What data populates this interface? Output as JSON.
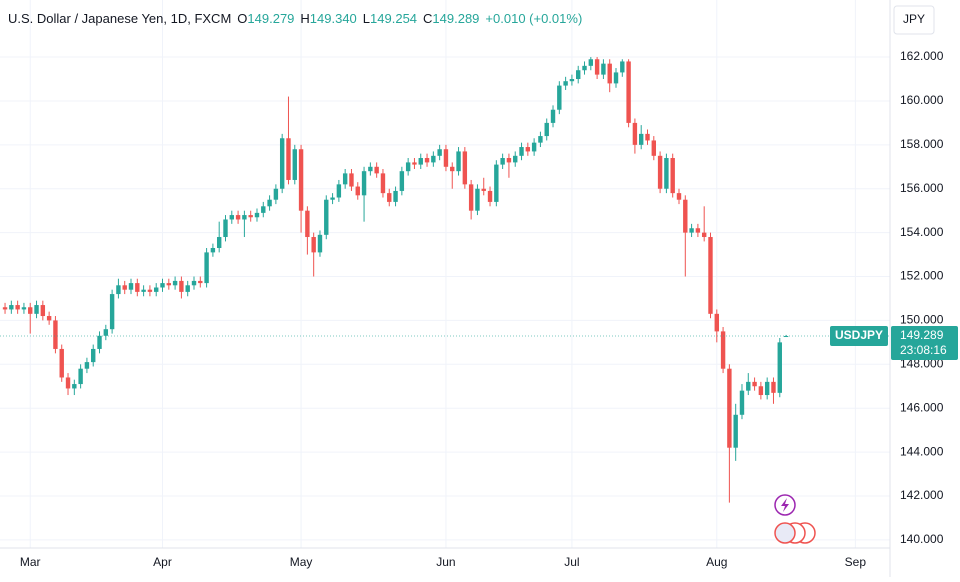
{
  "chart_data": {
    "type": "candlestick",
    "title": "U.S. Dollar / Japanese Yen, 1D, FXCM",
    "legend_items": [
      {
        "key": "O",
        "value": "149.279"
      },
      {
        "key": "H",
        "value": "149.340"
      },
      {
        "key": "L",
        "value": "149.254"
      },
      {
        "key": "C",
        "value": "149.289"
      }
    ],
    "change": "+0.010 (+0.01%)",
    "currency": "JPY",
    "symbol": "USDJPY",
    "last_price": "149.289",
    "countdown": "23:08:16",
    "up_color": "#26a69a",
    "down_color": "#ef5350",
    "grid": true,
    "xlim": [
      -0.8,
      140.5
    ],
    "xticks": [
      {
        "value": 4,
        "label": "Mar"
      },
      {
        "value": 25,
        "label": "Apr"
      },
      {
        "value": 47,
        "label": "May"
      },
      {
        "value": 70,
        "label": "Jun"
      },
      {
        "value": 90,
        "label": "Jul"
      },
      {
        "value": 113,
        "label": "Aug"
      },
      {
        "value": 135,
        "label": "Sep"
      }
    ],
    "ylim": [
      139.63,
      164.6
    ],
    "yticks": [
      {
        "value": 140,
        "label": "140.000"
      },
      {
        "value": 142,
        "label": "142.000"
      },
      {
        "value": 144,
        "label": "144.000"
      },
      {
        "value": 146,
        "label": "146.000"
      },
      {
        "value": 148,
        "label": "148.000"
      },
      {
        "value": 150,
        "label": "150.000"
      },
      {
        "value": 152,
        "label": "152.000"
      },
      {
        "value": 154,
        "label": "154.000"
      },
      {
        "value": 156,
        "label": "156.000"
      },
      {
        "value": 158,
        "label": "158.000"
      },
      {
        "value": 160,
        "label": "160.000"
      },
      {
        "value": 162,
        "label": "162.000"
      }
    ],
    "ohlc": [
      [
        150.6,
        150.8,
        150.3,
        150.5
      ],
      [
        150.5,
        150.9,
        150.3,
        150.7
      ],
      [
        150.7,
        150.9,
        150.3,
        150.5
      ],
      [
        150.5,
        150.8,
        150.3,
        150.6
      ],
      [
        150.6,
        150.8,
        149.4,
        150.3
      ],
      [
        150.3,
        150.9,
        150.1,
        150.7
      ],
      [
        150.7,
        150.9,
        150.0,
        150.2
      ],
      [
        150.2,
        150.4,
        149.8,
        150.0
      ],
      [
        150.0,
        150.2,
        148.5,
        148.7
      ],
      [
        148.7,
        148.9,
        147.2,
        147.4
      ],
      [
        147.4,
        147.6,
        146.6,
        146.9
      ],
      [
        146.9,
        147.3,
        146.6,
        147.1
      ],
      [
        147.1,
        148.0,
        146.9,
        147.8
      ],
      [
        147.8,
        148.3,
        147.6,
        148.1
      ],
      [
        148.1,
        148.9,
        147.9,
        148.7
      ],
      [
        148.7,
        149.5,
        148.5,
        149.3
      ],
      [
        149.3,
        149.8,
        149.1,
        149.6
      ],
      [
        149.6,
        151.4,
        149.4,
        151.2
      ],
      [
        151.2,
        151.9,
        151.0,
        151.6
      ],
      [
        151.6,
        151.8,
        151.2,
        151.4
      ],
      [
        151.4,
        151.9,
        151.2,
        151.7
      ],
      [
        151.7,
        151.9,
        151.1,
        151.3
      ],
      [
        151.3,
        151.6,
        151.1,
        151.4
      ],
      [
        151.4,
        151.6,
        151.1,
        151.3
      ],
      [
        151.3,
        151.7,
        151.1,
        151.5
      ],
      [
        151.5,
        151.9,
        151.3,
        151.7
      ],
      [
        151.7,
        151.9,
        151.4,
        151.6
      ],
      [
        151.6,
        152.0,
        151.4,
        151.8
      ],
      [
        151.8,
        152.0,
        151.0,
        151.3
      ],
      [
        151.3,
        151.8,
        151.1,
        151.6
      ],
      [
        151.6,
        152.0,
        151.4,
        151.8
      ],
      [
        151.8,
        152.0,
        151.5,
        151.7
      ],
      [
        151.7,
        153.3,
        151.5,
        153.1
      ],
      [
        153.1,
        153.5,
        152.9,
        153.3
      ],
      [
        153.3,
        154.5,
        153.1,
        153.8
      ],
      [
        153.8,
        154.8,
        153.6,
        154.6
      ],
      [
        154.6,
        155.0,
        154.4,
        154.8
      ],
      [
        154.8,
        155.0,
        154.4,
        154.6
      ],
      [
        154.6,
        155.0,
        153.8,
        154.8
      ],
      [
        154.8,
        155.0,
        154.5,
        154.7
      ],
      [
        154.7,
        155.1,
        154.5,
        154.9
      ],
      [
        154.9,
        155.4,
        154.7,
        155.2
      ],
      [
        155.2,
        155.7,
        155.0,
        155.5
      ],
      [
        155.5,
        156.2,
        155.3,
        156.0
      ],
      [
        156.0,
        158.5,
        155.8,
        158.3
      ],
      [
        158.3,
        160.2,
        156.2,
        156.4
      ],
      [
        156.4,
        158.0,
        156.2,
        157.8
      ],
      [
        157.8,
        158.0,
        154.0,
        155.0
      ],
      [
        155.0,
        155.2,
        153.0,
        153.8
      ],
      [
        153.8,
        154.0,
        152.0,
        153.1
      ],
      [
        153.1,
        154.1,
        152.9,
        153.9
      ],
      [
        153.9,
        155.7,
        153.7,
        155.5
      ],
      [
        155.5,
        155.8,
        155.3,
        155.6
      ],
      [
        155.6,
        156.4,
        155.4,
        156.2
      ],
      [
        156.2,
        156.9,
        156.0,
        156.7
      ],
      [
        156.7,
        156.9,
        155.9,
        156.1
      ],
      [
        156.1,
        156.3,
        155.5,
        155.7
      ],
      [
        155.7,
        157.0,
        154.5,
        156.8
      ],
      [
        156.8,
        157.2,
        156.6,
        157.0
      ],
      [
        157.0,
        157.2,
        156.5,
        156.7
      ],
      [
        156.7,
        156.9,
        155.6,
        155.8
      ],
      [
        155.8,
        156.0,
        155.2,
        155.4
      ],
      [
        155.4,
        156.1,
        155.2,
        155.9
      ],
      [
        155.9,
        157.0,
        155.7,
        156.8
      ],
      [
        156.8,
        157.4,
        156.6,
        157.2
      ],
      [
        157.2,
        157.4,
        156.9,
        157.1
      ],
      [
        157.1,
        157.6,
        156.9,
        157.4
      ],
      [
        157.4,
        157.6,
        157.0,
        157.2
      ],
      [
        157.2,
        157.7,
        157.0,
        157.5
      ],
      [
        157.5,
        158.0,
        157.3,
        157.8
      ],
      [
        157.8,
        158.0,
        156.8,
        157.0
      ],
      [
        157.0,
        157.2,
        156.0,
        156.8
      ],
      [
        156.8,
        157.9,
        156.6,
        157.7
      ],
      [
        157.7,
        157.9,
        156.0,
        156.2
      ],
      [
        156.2,
        156.4,
        154.6,
        155.0
      ],
      [
        155.0,
        156.2,
        154.8,
        156.0
      ],
      [
        156.0,
        156.5,
        155.7,
        155.9
      ],
      [
        155.9,
        156.1,
        155.2,
        155.4
      ],
      [
        155.4,
        157.3,
        155.2,
        157.1
      ],
      [
        157.1,
        157.6,
        156.9,
        157.4
      ],
      [
        157.4,
        157.6,
        156.5,
        157.2
      ],
      [
        157.2,
        157.7,
        157.0,
        157.5
      ],
      [
        157.5,
        158.1,
        157.3,
        157.9
      ],
      [
        157.9,
        158.1,
        157.5,
        157.7
      ],
      [
        157.7,
        158.3,
        157.5,
        158.1
      ],
      [
        158.1,
        158.6,
        157.9,
        158.4
      ],
      [
        158.4,
        159.2,
        158.2,
        159.0
      ],
      [
        159.0,
        159.8,
        158.8,
        159.6
      ],
      [
        159.6,
        160.9,
        159.4,
        160.7
      ],
      [
        160.7,
        161.1,
        160.5,
        160.9
      ],
      [
        160.9,
        161.2,
        160.7,
        161.0
      ],
      [
        161.0,
        161.6,
        160.8,
        161.4
      ],
      [
        161.4,
        161.8,
        161.2,
        161.6
      ],
      [
        161.6,
        162.0,
        161.4,
        161.9
      ],
      [
        161.9,
        162.0,
        161.0,
        161.2
      ],
      [
        161.2,
        161.9,
        161.0,
        161.7
      ],
      [
        161.7,
        161.9,
        160.4,
        160.8
      ],
      [
        160.8,
        161.5,
        160.6,
        161.3
      ],
      [
        161.3,
        161.9,
        161.1,
        161.8
      ],
      [
        161.8,
        161.9,
        158.8,
        159.0
      ],
      [
        159.0,
        159.2,
        157.6,
        158.0
      ],
      [
        158.0,
        158.9,
        157.8,
        158.5
      ],
      [
        158.5,
        158.7,
        158.0,
        158.2
      ],
      [
        158.2,
        158.4,
        157.3,
        157.5
      ],
      [
        157.5,
        157.7,
        155.8,
        156.0
      ],
      [
        156.0,
        157.6,
        155.8,
        157.4
      ],
      [
        157.4,
        157.6,
        155.6,
        155.8
      ],
      [
        155.8,
        156.0,
        155.3,
        155.5
      ],
      [
        155.5,
        155.7,
        152.0,
        154.0
      ],
      [
        154.0,
        154.4,
        153.8,
        154.2
      ],
      [
        154.2,
        154.4,
        153.8,
        154.0
      ],
      [
        154.0,
        155.2,
        153.6,
        153.8
      ],
      [
        153.8,
        154.0,
        150.1,
        150.3
      ],
      [
        150.3,
        150.5,
        149.0,
        149.5
      ],
      [
        149.5,
        149.7,
        147.6,
        147.8
      ],
      [
        147.8,
        148.0,
        141.7,
        144.2
      ],
      [
        144.2,
        146.2,
        143.6,
        145.7
      ],
      [
        145.7,
        147.1,
        145.5,
        146.8
      ],
      [
        146.8,
        147.6,
        146.6,
        147.2
      ],
      [
        147.2,
        147.4,
        146.8,
        147.0
      ],
      [
        147.0,
        147.2,
        146.4,
        146.6
      ],
      [
        146.6,
        147.4,
        146.4,
        147.2
      ],
      [
        147.2,
        147.4,
        146.2,
        146.7
      ],
      [
        146.7,
        149.2,
        146.5,
        149.0
      ],
      [
        149.279,
        149.34,
        149.254,
        149.289
      ]
    ]
  }
}
